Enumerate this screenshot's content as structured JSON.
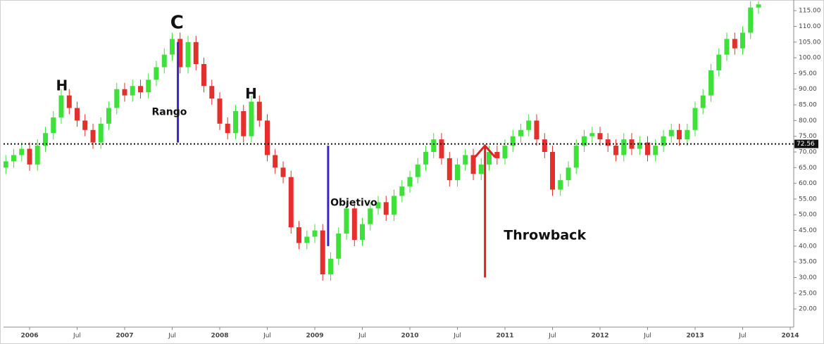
{
  "chart_data": {
    "type": "candlestick",
    "x": [
      2005.75,
      2005.833,
      2005.917,
      2006,
      2006.083,
      2006.167,
      2006.25,
      2006.333,
      2006.417,
      2006.5,
      2006.583,
      2006.667,
      2006.75,
      2006.833,
      2006.917,
      2007,
      2007.083,
      2007.167,
      2007.25,
      2007.333,
      2007.417,
      2007.5,
      2007.583,
      2007.667,
      2007.75,
      2007.833,
      2007.917,
      2008,
      2008.083,
      2008.167,
      2008.25,
      2008.333,
      2008.417,
      2008.5,
      2008.583,
      2008.667,
      2008.75,
      2008.833,
      2008.917,
      2009,
      2009.083,
      2009.167,
      2009.25,
      2009.333,
      2009.417,
      2009.5,
      2009.583,
      2009.667,
      2009.75,
      2009.833,
      2009.917,
      2010,
      2010.083,
      2010.167,
      2010.25,
      2010.333,
      2010.417,
      2010.5,
      2010.583,
      2010.667,
      2010.75,
      2010.833,
      2010.917,
      2011,
      2011.083,
      2011.167,
      2011.25,
      2011.333,
      2011.417,
      2011.5,
      2011.583,
      2011.667,
      2011.75,
      2011.833,
      2011.917,
      2012,
      2012.083,
      2012.167,
      2012.25,
      2012.333,
      2012.417,
      2012.5,
      2012.583,
      2012.667,
      2012.75,
      2012.833,
      2012.917,
      2013,
      2013.083,
      2013.167,
      2013.25,
      2013.333,
      2013.417,
      2013.5,
      2013.583,
      2013.667
    ],
    "open": [
      65,
      67,
      69,
      71,
      66,
      72,
      76,
      81,
      88,
      84,
      80,
      77,
      73,
      79,
      84,
      90,
      88,
      91,
      89,
      93,
      97,
      101,
      106,
      97,
      105,
      98,
      91,
      87,
      79,
      76,
      83,
      75,
      86,
      80,
      69,
      65,
      62,
      46,
      41,
      43,
      45,
      31,
      36,
      44,
      52,
      42,
      47,
      52,
      54,
      50,
      56,
      59,
      62,
      66,
      70,
      74,
      68,
      61,
      66,
      69,
      63,
      66,
      70,
      68,
      72,
      75,
      77,
      80,
      74,
      70,
      58,
      61,
      65,
      72,
      75,
      76,
      74,
      72,
      69,
      74,
      71,
      73,
      69,
      72,
      75,
      77,
      74,
      77,
      84,
      88,
      96,
      101,
      106,
      103,
      108,
      116
    ],
    "high": [
      69,
      71,
      73,
      73,
      74,
      78,
      83,
      90,
      90,
      86,
      82,
      79,
      81,
      86,
      92,
      92,
      93,
      93,
      95,
      99,
      103,
      108,
      108,
      107,
      107,
      100,
      93,
      89,
      81,
      85,
      85,
      88,
      88,
      82,
      71,
      67,
      64,
      48,
      45,
      47,
      47,
      38,
      46,
      54,
      54,
      49,
      54,
      56,
      56,
      58,
      61,
      64,
      68,
      72,
      76,
      76,
      70,
      68,
      71,
      71,
      68,
      72,
      72,
      74,
      77,
      79,
      82,
      82,
      76,
      72,
      63,
      67,
      74,
      77,
      78,
      78,
      76,
      74,
      76,
      76,
      75,
      75,
      74,
      77,
      79,
      79,
      79,
      86,
      90,
      98,
      103,
      108,
      108,
      110,
      118,
      118
    ],
    "low": [
      63,
      65,
      67,
      64,
      64,
      70,
      74,
      79,
      82,
      78,
      75,
      71,
      71,
      77,
      82,
      86,
      86,
      87,
      87,
      91,
      95,
      99,
      95,
      95,
      96,
      89,
      85,
      77,
      74,
      74,
      73,
      73,
      78,
      67,
      63,
      60,
      44,
      39,
      39,
      41,
      29,
      29,
      34,
      42,
      40,
      40,
      45,
      50,
      48,
      48,
      54,
      57,
      60,
      64,
      68,
      66,
      59,
      59,
      64,
      61,
      61,
      64,
      66,
      66,
      70,
      73,
      75,
      72,
      68,
      56,
      56,
      59,
      63,
      70,
      73,
      72,
      70,
      67,
      67,
      69,
      69,
      67,
      67,
      70,
      73,
      72,
      72,
      75,
      82,
      86,
      94,
      99,
      101,
      101,
      106,
      114
    ],
    "close": [
      67,
      69,
      71,
      66,
      72,
      76,
      81,
      88,
      84,
      80,
      77,
      73,
      79,
      84,
      90,
      88,
      91,
      89,
      93,
      97,
      101,
      106,
      97,
      105,
      98,
      91,
      87,
      79,
      76,
      83,
      75,
      86,
      80,
      69,
      65,
      62,
      46,
      41,
      43,
      45,
      31,
      36,
      44,
      52,
      42,
      47,
      52,
      54,
      50,
      56,
      59,
      62,
      66,
      70,
      74,
      68,
      61,
      66,
      69,
      63,
      66,
      70,
      68,
      72,
      75,
      77,
      80,
      74,
      70,
      58,
      61,
      65,
      72,
      75,
      76,
      74,
      72,
      69,
      74,
      71,
      73,
      69,
      72,
      75,
      77,
      74,
      77,
      84,
      88,
      96,
      101,
      106,
      103,
      108,
      116,
      117
    ],
    "up_color": "#3ee03a",
    "down_color": "#e3302c",
    "xlim": [
      2005.726,
      2014.037
    ],
    "xticks": [
      2006,
      {
        "value": 2006.5,
        "label": "Jul"
      },
      2007,
      {
        "value": 2007.5,
        "label": "Jul"
      },
      2008,
      {
        "value": 2008.5,
        "label": "Jul"
      },
      2009,
      {
        "value": 2009.5,
        "label": "Jul"
      },
      2010,
      {
        "value": 2010.5,
        "label": "Jul"
      },
      2011,
      {
        "value": 2011.5,
        "label": "Jul"
      },
      2012,
      {
        "value": 2012.5,
        "label": "Jul"
      },
      2013,
      {
        "value": 2013.5,
        "label": "Jul"
      },
      2014
    ],
    "ylim": [
      14.2,
      118.4
    ],
    "yticks": [
      {
        "value": 20,
        "label": "20.00"
      },
      {
        "value": 25,
        "label": "25.00"
      },
      {
        "value": 30,
        "label": "30.00"
      },
      {
        "value": 35,
        "label": "35.00"
      },
      {
        "value": 40,
        "label": "40.00"
      },
      {
        "value": 45,
        "label": "45.00"
      },
      {
        "value": 50,
        "label": "50.00"
      },
      {
        "value": 55,
        "label": "55.00"
      },
      {
        "value": 60,
        "label": "60.00"
      },
      {
        "value": 65,
        "label": "65.00"
      },
      {
        "value": 70,
        "label": "70.00"
      },
      {
        "value": 75,
        "label": "75.00"
      },
      {
        "value": 80,
        "label": "80.00"
      },
      {
        "value": 85,
        "label": "85.00"
      },
      {
        "value": 90,
        "label": "90.00"
      },
      {
        "value": 95,
        "label": "95.00"
      },
      {
        "value": 100,
        "label": "100.00"
      },
      {
        "value": 105,
        "label": "105.00"
      },
      {
        "value": 110,
        "label": "110.00"
      },
      {
        "value": 115,
        "label": "115.00"
      }
    ],
    "price_line": 72.56,
    "annotations": [
      {
        "text": "H",
        "x": 2006.34,
        "y": 90.8,
        "size": 20
      },
      {
        "text": "C",
        "x": 2007.55,
        "y": 111,
        "size": 26
      },
      {
        "text": "H",
        "x": 2008.33,
        "y": 88.3,
        "size": 20
      },
      {
        "text": "Rango",
        "x": 2007.47,
        "y": 82.7,
        "size": 14
      },
      {
        "text": "Objetivo",
        "x": 2009.41,
        "y": 53.8,
        "size": 14
      },
      {
        "text": "Throwback",
        "x": 2011.42,
        "y": 43.3,
        "size": 19
      }
    ],
    "segments": [
      {
        "x": 2007.56,
        "y": [
          73,
          105
        ],
        "color": "#3a22c9"
      },
      {
        "x": 2009.14,
        "y": [
          40,
          72
        ],
        "color": "#3a22c9"
      }
    ],
    "arrow": {
      "x": 2010.79,
      "y": [
        30,
        72
      ],
      "color": "#e02020"
    }
  }
}
